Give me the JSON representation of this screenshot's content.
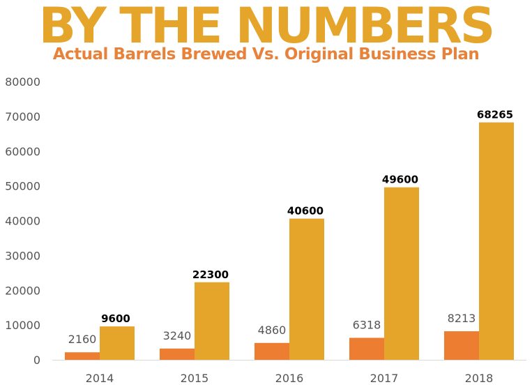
{
  "headline": "BY THE NUMBERS",
  "subheadline": "Actual Barrels Brewed Vs. Original Business Plan",
  "colors": {
    "headline": "#e5a42a",
    "subheadline": "#e8813a",
    "actual": "#ed7d31",
    "plan": "#e5a42a"
  },
  "chart_data": {
    "type": "bar",
    "title": "",
    "xlabel": "",
    "ylabel": "",
    "categories": [
      "2014",
      "2015",
      "2016",
      "2017",
      "2018"
    ],
    "series": [
      {
        "values": [
          2160,
          3240,
          4860,
          6318,
          8213
        ],
        "color": "#ed7d31"
      },
      {
        "values": [
          9600,
          22300,
          40600,
          49600,
          68265
        ],
        "color": "#e5a42a"
      }
    ],
    "ylim": [
      0,
      80000
    ],
    "yticks": [
      0,
      10000,
      20000,
      30000,
      40000,
      50000,
      60000,
      70000,
      80000
    ],
    "grid": false,
    "legend": "none"
  }
}
